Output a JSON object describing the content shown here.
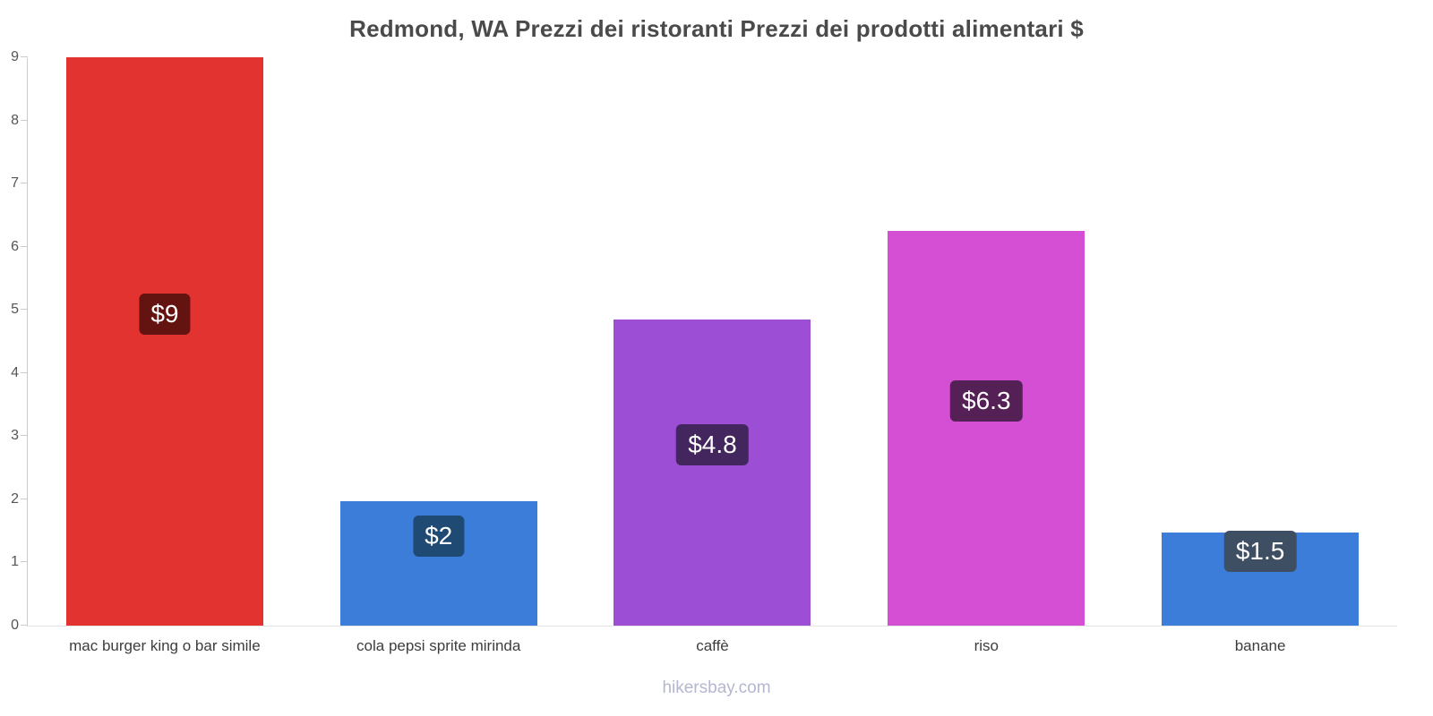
{
  "chart_data": {
    "type": "bar",
    "title": "Redmond, WA Prezzi dei ristoranti Prezzi dei prodotti alimentari $",
    "categories": [
      "mac burger king o bar simile",
      "cola pepsi sprite mirinda",
      "caffè",
      "riso",
      "banane"
    ],
    "values": [
      9,
      1.97,
      4.85,
      6.25,
      1.48
    ],
    "value_labels": [
      "$9",
      "$2",
      "$4.8",
      "$6.3",
      "$1.5"
    ],
    "bar_colors": [
      "#e23330",
      "#3b7dd8",
      "#9c4fd4",
      "#d54fd4",
      "#3b7dd8"
    ],
    "value_badge_colors": [
      "#641410",
      "#1f4a73",
      "#44265e",
      "#542055",
      "#3f4f63"
    ],
    "xlabel": "",
    "ylabel": "",
    "ylim": [
      0,
      9
    ],
    "yticks": [
      0,
      1,
      2,
      3,
      4,
      5,
      6,
      7,
      8,
      9
    ],
    "grid": false,
    "legend": "none"
  },
  "footer": {
    "watermark": "hikersbay.com"
  }
}
